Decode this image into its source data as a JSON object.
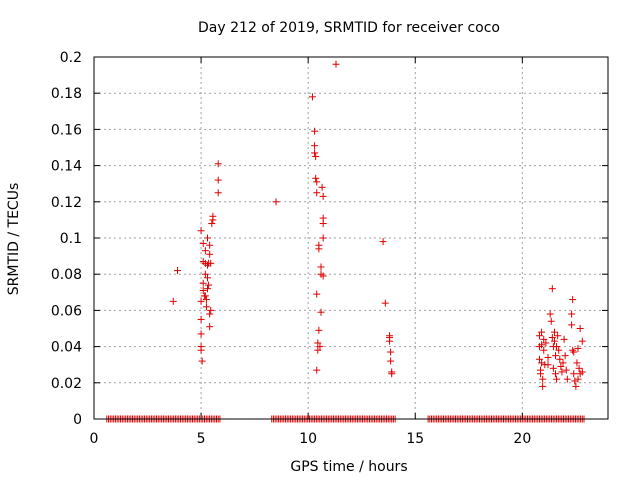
{
  "chart_data": {
    "type": "scatter",
    "title": "Day 212 of 2019, SRMTID for receiver coco",
    "xlabel": "GPS time / hours",
    "ylabel": "SRMTID / TECUs",
    "xlim": [
      0,
      24
    ],
    "ylim": [
      0,
      0.2
    ],
    "xticks": [
      0,
      5,
      10,
      15,
      20
    ],
    "yticks": [
      0,
      0.02,
      0.04,
      0.06,
      0.08,
      0.1,
      0.12,
      0.14,
      0.16,
      0.18,
      0.2
    ],
    "xtick_labels": [
      "0",
      "5",
      "10",
      "15",
      "20"
    ],
    "ytick_labels": [
      "0",
      "0.02",
      "0.04",
      "0.06",
      "0.08",
      "0.1",
      "0.12",
      "0.14",
      "0.16",
      "0.18",
      "0.2"
    ],
    "grid": true,
    "marker": "+",
    "color": "#e00000",
    "zero_ranges": [
      [
        0.6,
        5.9
      ],
      [
        8.3,
        14.1
      ],
      [
        15.6,
        22.9
      ]
    ],
    "series": [
      {
        "name": "SRMTID",
        "points": [
          [
            3.7,
            0.065
          ],
          [
            3.9,
            0.082
          ],
          [
            5.0,
            0.104
          ],
          [
            5.0,
            0.065
          ],
          [
            5.0,
            0.055
          ],
          [
            5.0,
            0.047
          ],
          [
            5.0,
            0.04
          ],
          [
            5.0,
            0.038
          ],
          [
            5.05,
            0.032
          ],
          [
            5.1,
            0.097
          ],
          [
            5.1,
            0.087
          ],
          [
            5.1,
            0.075
          ],
          [
            5.1,
            0.071
          ],
          [
            5.15,
            0.068
          ],
          [
            5.2,
            0.093
          ],
          [
            5.2,
            0.086
          ],
          [
            5.2,
            0.08
          ],
          [
            5.2,
            0.068
          ],
          [
            5.25,
            0.066
          ],
          [
            5.25,
            0.062
          ],
          [
            5.3,
            0.1
          ],
          [
            5.3,
            0.085
          ],
          [
            5.3,
            0.078
          ],
          [
            5.3,
            0.072
          ],
          [
            5.35,
            0.086
          ],
          [
            5.35,
            0.074
          ],
          [
            5.4,
            0.096
          ],
          [
            5.4,
            0.091
          ],
          [
            5.4,
            0.058
          ],
          [
            5.4,
            0.051
          ],
          [
            5.45,
            0.086
          ],
          [
            5.45,
            0.06
          ],
          [
            5.5,
            0.108
          ],
          [
            5.55,
            0.112
          ],
          [
            5.55,
            0.11
          ],
          [
            5.8,
            0.141
          ],
          [
            5.8,
            0.132
          ],
          [
            5.8,
            0.125
          ],
          [
            8.5,
            0.12
          ],
          [
            10.2,
            0.178
          ],
          [
            10.3,
            0.159
          ],
          [
            10.3,
            0.151
          ],
          [
            10.3,
            0.147
          ],
          [
            10.35,
            0.145
          ],
          [
            10.35,
            0.133
          ],
          [
            10.4,
            0.131
          ],
          [
            10.4,
            0.125
          ],
          [
            10.4,
            0.069
          ],
          [
            10.45,
            0.042
          ],
          [
            10.45,
            0.038
          ],
          [
            10.4,
            0.027
          ],
          [
            10.5,
            0.096
          ],
          [
            10.5,
            0.094
          ],
          [
            10.5,
            0.049
          ],
          [
            10.55,
            0.04
          ],
          [
            10.6,
            0.084
          ],
          [
            10.6,
            0.08
          ],
          [
            10.6,
            0.059
          ],
          [
            10.65,
            0.128
          ],
          [
            10.7,
            0.123
          ],
          [
            10.7,
            0.111
          ],
          [
            10.7,
            0.108
          ],
          [
            10.7,
            0.1
          ],
          [
            10.7,
            0.079
          ],
          [
            11.3,
            0.196
          ],
          [
            13.5,
            0.098
          ],
          [
            13.6,
            0.064
          ],
          [
            13.8,
            0.046
          ],
          [
            13.8,
            0.045
          ],
          [
            13.8,
            0.043
          ],
          [
            13.85,
            0.037
          ],
          [
            13.85,
            0.032
          ],
          [
            13.9,
            0.026
          ],
          [
            13.9,
            0.025
          ],
          [
            20.8,
            0.046
          ],
          [
            20.8,
            0.04
          ],
          [
            20.8,
            0.033
          ],
          [
            20.85,
            0.027
          ],
          [
            20.85,
            0.025
          ],
          [
            20.9,
            0.048
          ],
          [
            20.9,
            0.041
          ],
          [
            20.9,
            0.031
          ],
          [
            20.95,
            0.022
          ],
          [
            20.95,
            0.018
          ],
          [
            21.0,
            0.044
          ],
          [
            21.0,
            0.038
          ],
          [
            21.05,
            0.03
          ],
          [
            21.1,
            0.042
          ],
          [
            21.2,
            0.034
          ],
          [
            21.2,
            0.03
          ],
          [
            21.3,
            0.058
          ],
          [
            21.35,
            0.054
          ],
          [
            21.4,
            0.072
          ],
          [
            21.4,
            0.045
          ],
          [
            21.45,
            0.04
          ],
          [
            21.45,
            0.028
          ],
          [
            21.5,
            0.048
          ],
          [
            21.5,
            0.043
          ],
          [
            21.55,
            0.035
          ],
          [
            21.55,
            0.025
          ],
          [
            21.6,
            0.04
          ],
          [
            21.6,
            0.022
          ],
          [
            21.65,
            0.046
          ],
          [
            21.7,
            0.038
          ],
          [
            21.75,
            0.033
          ],
          [
            21.8,
            0.029
          ],
          [
            21.85,
            0.026
          ],
          [
            21.9,
            0.031
          ],
          [
            21.95,
            0.044
          ],
          [
            22.0,
            0.035
          ],
          [
            22.05,
            0.027
          ],
          [
            22.1,
            0.022
          ],
          [
            22.3,
            0.058
          ],
          [
            22.3,
            0.052
          ],
          [
            22.35,
            0.066
          ],
          [
            22.35,
            0.038
          ],
          [
            22.4,
            0.037
          ],
          [
            22.4,
            0.025
          ],
          [
            22.45,
            0.021
          ],
          [
            22.5,
            0.018
          ],
          [
            22.55,
            0.031
          ],
          [
            22.6,
            0.039
          ],
          [
            22.6,
            0.022
          ],
          [
            22.65,
            0.028
          ],
          [
            22.7,
            0.05
          ],
          [
            22.7,
            0.025
          ],
          [
            22.8,
            0.043
          ],
          [
            22.8,
            0.026
          ]
        ]
      }
    ]
  }
}
